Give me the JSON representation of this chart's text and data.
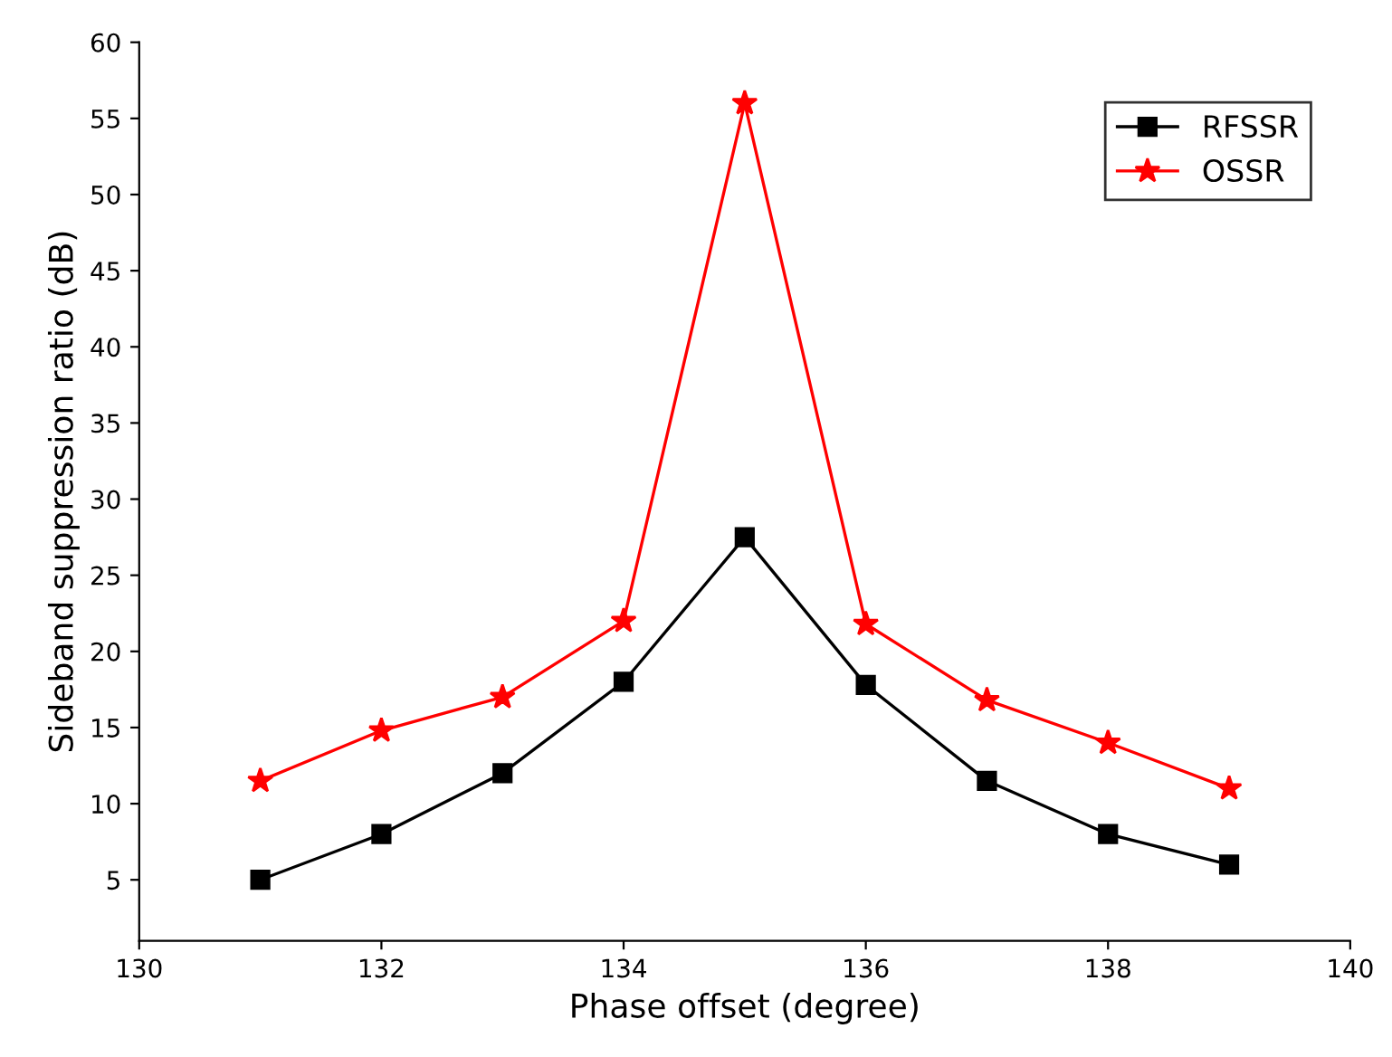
{
  "chart_data": {
    "type": "line",
    "xlabel": "Phase offset (degree)",
    "ylabel": "Sideband suppression ratio (dB)",
    "x": [
      131,
      132,
      133,
      134,
      135,
      136,
      137,
      138,
      139
    ],
    "series": [
      {
        "name": "RFSSR",
        "color": "#000000",
        "marker": "square",
        "values": [
          5,
          8,
          12,
          18,
          27.5,
          17.8,
          11.5,
          8,
          6
        ]
      },
      {
        "name": "OSSR",
        "color": "#ff0000",
        "marker": "star",
        "values": [
          11.5,
          14.8,
          17,
          22,
          56,
          21.8,
          16.8,
          14,
          11
        ]
      }
    ],
    "xlim": [
      130,
      140
    ],
    "xticks": [
      130,
      132,
      134,
      136,
      138,
      140
    ],
    "ylim": [
      1,
      60
    ],
    "yticks": [
      5,
      10,
      15,
      20,
      25,
      30,
      35,
      40,
      45,
      50,
      55,
      60
    ],
    "grid": false,
    "legend": "top right",
    "line_style": "solid"
  }
}
